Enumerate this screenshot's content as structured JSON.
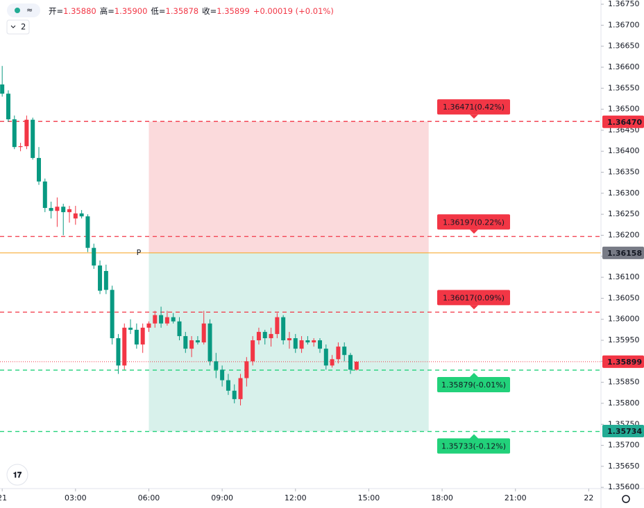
{
  "chart_data": {
    "type": "candlestick",
    "header": {
      "items": [
        {
          "label": "开=",
          "value": "1.35880"
        },
        {
          "label": "高=",
          "value": "1.35900"
        },
        {
          "label": "低=",
          "value": "1.35878"
        },
        {
          "label": "收=",
          "value": "1.35899"
        }
      ],
      "change": "+0.00019 (+0.01%)",
      "indicators": "2"
    },
    "up_color": "#f23645",
    "down_color": "#089981",
    "x": [
      0,
      0.25,
      0.5,
      0.75,
      1,
      1.25,
      1.5,
      1.75,
      2,
      2.25,
      2.5,
      2.75,
      3,
      3.25,
      3.5,
      3.75,
      4,
      4.25,
      4.5,
      4.75,
      5,
      5.25,
      5.5,
      5.75,
      6,
      6.25,
      6.5,
      6.75,
      7,
      7.25,
      7.5,
      7.75,
      8,
      8.25,
      8.5,
      8.75,
      9,
      9.25,
      9.5,
      9.75,
      10,
      10.25,
      10.5,
      10.75,
      11,
      11.25,
      11.5,
      11.75,
      12,
      12.25,
      12.5,
      12.75,
      13,
      13.25,
      13.5,
      13.75,
      14,
      14.25,
      14.5
    ],
    "open": [
      1.36559,
      1.36537,
      1.36476,
      1.3641,
      1.36412,
      1.36475,
      1.36384,
      1.36328,
      1.36265,
      1.36258,
      1.36268,
      1.36255,
      1.3624,
      1.36252,
      1.36245,
      1.3617,
      1.36128,
      1.36115,
      1.3607,
      1.35955,
      1.3589,
      1.3598,
      1.35975,
      1.3594,
      1.3598,
      1.3599,
      1.3601,
      1.3599,
      1.36005,
      1.35995,
      1.3596,
      1.3593,
      1.3595,
      1.35945,
      1.3599,
      1.359,
      1.3588,
      1.35855,
      1.3583,
      1.3581,
      1.3586,
      1.359,
      1.3595,
      1.3597,
      1.35955,
      1.35965,
      1.36005,
      1.3595,
      1.35955,
      1.3593,
      1.3595,
      1.35945,
      1.3595,
      1.3593,
      1.3589,
      1.35905,
      1.35935,
      1.35915,
      1.3588
    ],
    "high": [
      1.36603,
      1.36545,
      1.36485,
      1.3642,
      1.36485,
      1.3648,
      1.3641,
      1.36335,
      1.3628,
      1.3629,
      1.36275,
      1.3627,
      1.3627,
      1.3626,
      1.3625,
      1.3618,
      1.3614,
      1.3613,
      1.3608,
      1.35965,
      1.3599,
      1.36,
      1.3599,
      1.3599,
      1.35995,
      1.3602,
      1.3603,
      1.3602,
      1.36015,
      1.36005,
      1.3597,
      1.3596,
      1.3596,
      1.3602,
      1.36,
      1.3592,
      1.3589,
      1.3587,
      1.35845,
      1.3587,
      1.3591,
      1.3596,
      1.3598,
      1.35975,
      1.3598,
      1.36015,
      1.3601,
      1.3597,
      1.35965,
      1.3596,
      1.3596,
      1.35955,
      1.35955,
      1.3594,
      1.35915,
      1.35945,
      1.35945,
      1.3592,
      1.359
    ],
    "low": [
      1.3653,
      1.3647,
      1.36405,
      1.364,
      1.36405,
      1.3638,
      1.3632,
      1.36255,
      1.3624,
      1.3622,
      1.362,
      1.3623,
      1.36225,
      1.3624,
      1.3616,
      1.3612,
      1.3606,
      1.3606,
      1.3594,
      1.3587,
      1.3588,
      1.35965,
      1.3593,
      1.3592,
      1.3597,
      1.3598,
      1.3598,
      1.35985,
      1.3599,
      1.3595,
      1.3592,
      1.3591,
      1.3594,
      1.3594,
      1.3589,
      1.3586,
      1.3584,
      1.3582,
      1.358,
      1.35795,
      1.3584,
      1.3589,
      1.3594,
      1.3594,
      1.35935,
      1.35955,
      1.3594,
      1.3593,
      1.3592,
      1.3592,
      1.3594,
      1.35935,
      1.3592,
      1.3588,
      1.35885,
      1.35895,
      1.359,
      1.3587,
      1.35878
    ],
    "close": [
      1.36537,
      1.36476,
      1.3641,
      1.36412,
      1.36475,
      1.36384,
      1.36328,
      1.36265,
      1.36258,
      1.36268,
      1.36255,
      1.36262,
      1.36252,
      1.36245,
      1.3617,
      1.36128,
      1.36068,
      1.3607,
      1.35955,
      1.3589,
      1.3598,
      1.35975,
      1.3594,
      1.3598,
      1.3599,
      1.3601,
      1.3599,
      1.36005,
      1.35995,
      1.3596,
      1.3593,
      1.3595,
      1.35945,
      1.3599,
      1.359,
      1.3588,
      1.35855,
      1.3583,
      1.3581,
      1.3586,
      1.359,
      1.3595,
      1.3597,
      1.35955,
      1.35965,
      1.36005,
      1.3595,
      1.35955,
      1.3593,
      1.3595,
      1.35945,
      1.3595,
      1.3593,
      1.3589,
      1.35905,
      1.35935,
      1.35915,
      1.3588,
      1.35899
    ],
    "xlim": [
      -0.09,
      24.5
    ],
    "xticks": [
      {
        "value": 0,
        "label": "21"
      },
      {
        "value": 3,
        "label": "03:00"
      },
      {
        "value": 6,
        "label": "06:00"
      },
      {
        "value": 9,
        "label": "09:00"
      },
      {
        "value": 12,
        "label": "12:00"
      },
      {
        "value": 15,
        "label": "15:00"
      },
      {
        "value": 18,
        "label": "18:00"
      },
      {
        "value": 21,
        "label": "21:00"
      },
      {
        "value": 24,
        "label": "22"
      }
    ],
    "ylim": [
      1.35597,
      1.3676
    ],
    "yticks": [
      {
        "value": 1.356,
        "label": "1.35600"
      },
      {
        "value": 1.3565,
        "label": "1.35650"
      },
      {
        "value": 1.357,
        "label": "1.35700"
      },
      {
        "value": 1.3575,
        "label": "1.35750"
      },
      {
        "value": 1.358,
        "label": "1.35800"
      },
      {
        "value": 1.3585,
        "label": "1.35850"
      },
      {
        "value": 1.359,
        "label": "1.35900"
      },
      {
        "value": 1.3595,
        "label": "1.35950"
      },
      {
        "value": 1.36,
        "label": "1.36000"
      },
      {
        "value": 1.3605,
        "label": "1.36050"
      },
      {
        "value": 1.361,
        "label": "1.36100"
      },
      {
        "value": 1.3615,
        "label": "1.36150"
      },
      {
        "value": 1.362,
        "label": "1.36200"
      },
      {
        "value": 1.3625,
        "label": "1.36250"
      },
      {
        "value": 1.363,
        "label": "1.36300"
      },
      {
        "value": 1.3635,
        "label": "1.36350"
      },
      {
        "value": 1.364,
        "label": "1.36400"
      },
      {
        "value": 1.3645,
        "label": "1.36450"
      },
      {
        "value": 1.365,
        "label": "1.36500"
      },
      {
        "value": 1.3655,
        "label": "1.36550"
      },
      {
        "value": 1.366,
        "label": "1.36600"
      },
      {
        "value": 1.3665,
        "label": "1.36650"
      },
      {
        "value": 1.367,
        "label": "1.36700"
      },
      {
        "value": 1.3675,
        "label": "1.36750"
      }
    ],
    "position": {
      "x_start": 6,
      "x_end": 17.45,
      "stop": 1.36471,
      "entry": 1.36158,
      "target": 1.35733,
      "stop_color": "#fbdadc",
      "target_color": "#d8f1eb"
    },
    "entry_line": {
      "value": 1.36158,
      "label": "P",
      "color": "#f7a21b"
    },
    "current_price": 1.35899,
    "levels": [
      {
        "value": 1.36471,
        "label": "1.36471(0.42%)",
        "color": "#f23645",
        "side": "above"
      },
      {
        "value": 1.36197,
        "label": "1.36197(0.22%)",
        "color": "#f23645",
        "side": "above"
      },
      {
        "value": 1.36017,
        "label": "1.36017(0.09%)",
        "color": "#f23645",
        "side": "above"
      },
      {
        "value": 1.35879,
        "label": "1.35879(-0.01%)",
        "color": "#22d17a",
        "side": "below"
      },
      {
        "value": 1.35733,
        "label": "1.35733(-0.12%)",
        "color": "#22d17a",
        "side": "below"
      }
    ],
    "price_tags": [
      {
        "value": 1.3647,
        "label": "1.36470",
        "color": "#f23645"
      },
      {
        "value": 1.36158,
        "label": "1.36158",
        "color": "#787b86"
      },
      {
        "value": 1.35899,
        "label": "1.35899",
        "color": "#f23645"
      },
      {
        "value": 1.35734,
        "label": "1.35734",
        "color": "#22ab94"
      }
    ]
  }
}
